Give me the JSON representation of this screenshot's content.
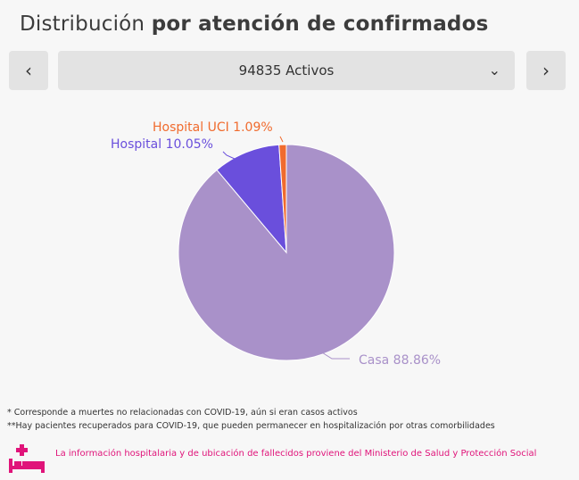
{
  "title": {
    "regular": "Distribución",
    "bold": "por atención de confirmados"
  },
  "navigation": {
    "prev_icon": "chevron-left-icon",
    "next_icon": "chevron-right-icon"
  },
  "selector": {
    "value": "94835 Activos",
    "icon": "chevron-down-icon"
  },
  "chart_data": {
    "type": "pie",
    "slices": [
      {
        "label": "Hospital UCI 1.09%",
        "value": 1.09,
        "color": "#f06b2e",
        "label_color": "#f06b2e"
      },
      {
        "label": "Hospital 10.05%",
        "value": 10.05,
        "color": "#6a4fdc",
        "label_color": "#6a4fdc"
      },
      {
        "label": "Casa 88.86%",
        "value": 88.86,
        "color": "#a991c9",
        "label_color": "#a991c9"
      }
    ]
  },
  "notes": [
    "* Corresponde a muertes no relacionadas con COVID-19, aún si eran casos activos",
    "**Hay pacientes recuperados para COVID-19, que pueden permanecer en hospitalización por otras comorbilidades"
  ],
  "source": {
    "icon": "hospital-bed-icon",
    "text": "La información hospitalaria y de ubicación de fallecidos proviene del Ministerio de Salud y Protección Social",
    "color": "#e0147a"
  }
}
